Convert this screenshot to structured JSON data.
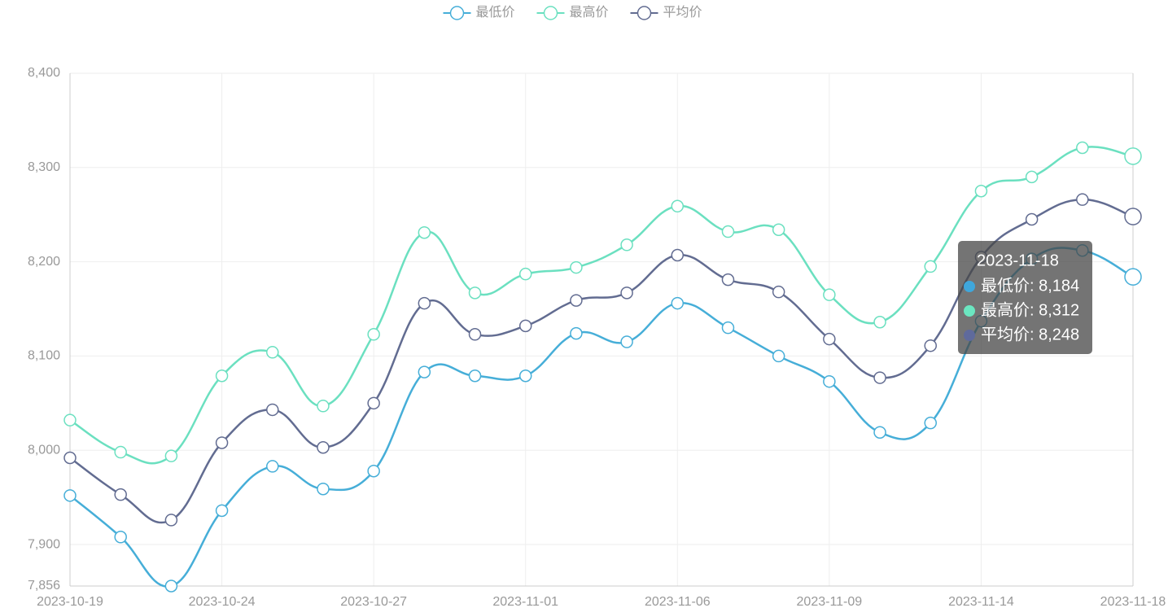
{
  "chart_data": {
    "type": "line",
    "categories": [
      "2023-10-19",
      null,
      null,
      "2023-10-24",
      null,
      null,
      "2023-10-27",
      null,
      null,
      "2023-11-01",
      null,
      null,
      "2023-11-06",
      null,
      null,
      "2023-11-09",
      null,
      null,
      "2023-11-14",
      null,
      null,
      "2023-11-18"
    ],
    "series": [
      {
        "name": "最低价",
        "color": "#46aed8",
        "values": [
          7952,
          7908,
          7856,
          7936,
          7983,
          7959,
          7978,
          8083,
          8079,
          8079,
          8124,
          8115,
          8156,
          8130,
          8100,
          8073,
          8019,
          8029,
          8137,
          8203,
          8212,
          8184
        ]
      },
      {
        "name": "最高价",
        "color": "#6be0c0",
        "values": [
          8032,
          7998,
          7994,
          8079,
          8104,
          8047,
          8123,
          8231,
          8167,
          8187,
          8194,
          8218,
          8259,
          8232,
          8234,
          8165,
          8136,
          8195,
          8275,
          8290,
          8321,
          8312
        ]
      },
      {
        "name": "平均价",
        "color": "#626c91",
        "values": [
          7992,
          7953,
          7926,
          8008,
          8043,
          8003,
          8050,
          8156,
          8123,
          8132,
          8159,
          8167,
          8207,
          8181,
          8168,
          8118,
          8077,
          8111,
          8205,
          8245,
          8266,
          8248
        ]
      }
    ],
    "ylim": [
      7856,
      8400
    ],
    "yticks": [
      {
        "value": 7856,
        "label": "7,856"
      },
      {
        "value": 7900,
        "label": "7,900"
      },
      {
        "value": 8000,
        "label": "8,000"
      },
      {
        "value": 8100,
        "label": "8,100"
      },
      {
        "value": 8200,
        "label": "8,200"
      },
      {
        "value": 8300,
        "label": "8,300"
      },
      {
        "value": 8400,
        "label": "8,400"
      }
    ],
    "grid": true,
    "legend": "top",
    "tooltip": {
      "title": "2023-11-18",
      "items": [
        {
          "text": "最低价: 8,184",
          "color": "#3fa7dc"
        },
        {
          "text": "最高价: 8,312",
          "color": "#6be6c1"
        },
        {
          "text": "平均价: 8,248",
          "color": "#5f6a9c"
        }
      ]
    }
  }
}
